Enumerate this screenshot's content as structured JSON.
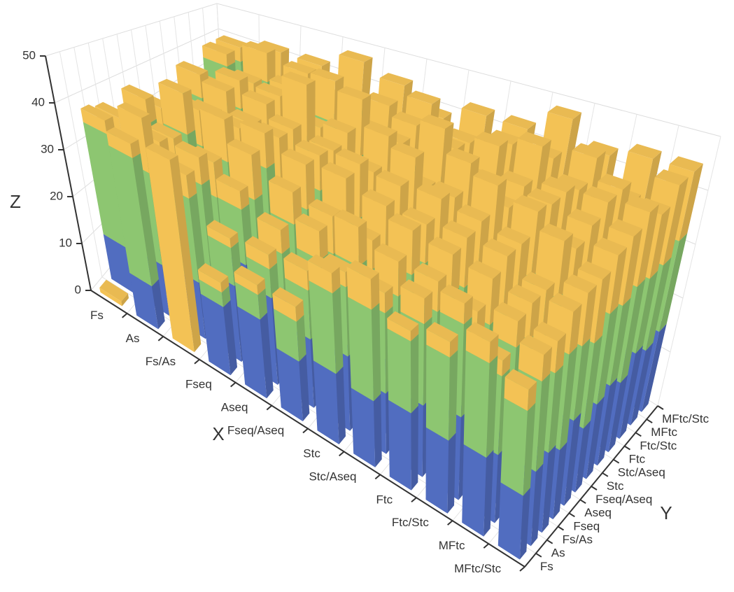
{
  "chart_data": {
    "type": "bar3d",
    "x_name": "X",
    "y_name": "Y",
    "z_name": "Z",
    "categories": [
      "Fs",
      "As",
      "Fs/As",
      "Fseq",
      "Aseq",
      "Fseq/Aseq",
      "Stc",
      "Stc/Aseq",
      "Ftc",
      "Ftc/Stc",
      "MFtc",
      "MFtc/Stc"
    ],
    "zlim": [
      0,
      50
    ],
    "zticks": [
      0,
      10,
      20,
      30,
      40,
      50
    ],
    "grid": true,
    "series": [
      {
        "color": "#5470c6",
        "values": [
          [
            0,
            10,
            14,
            8,
            12,
            10,
            9,
            8,
            12,
            10,
            15,
            12
          ],
          [
            9,
            11,
            10,
            13,
            12,
            14,
            10,
            11,
            12,
            9,
            13,
            11
          ],
          [
            0,
            12,
            9,
            10,
            14,
            11,
            13,
            12,
            10,
            14,
            12,
            13
          ],
          [
            14,
            16,
            18,
            12,
            15,
            13,
            14,
            16,
            12,
            15,
            13,
            14
          ],
          [
            16,
            18,
            15,
            14,
            12,
            16,
            13,
            15,
            14,
            12,
            15,
            16
          ],
          [
            12,
            14,
            16,
            13,
            15,
            12,
            14,
            13,
            15,
            16,
            14,
            12
          ],
          [
            14,
            15,
            13,
            16,
            12,
            14,
            15,
            13,
            16,
            14,
            12,
            15
          ],
          [
            13,
            12,
            15,
            14,
            16,
            13,
            12,
            14,
            15,
            13,
            16,
            14
          ],
          [
            15,
            14,
            12,
            16,
            13,
            15,
            14,
            12,
            13,
            15,
            14,
            16
          ],
          [
            14,
            16,
            13,
            12,
            15,
            14,
            16,
            13,
            12,
            14,
            15,
            13
          ],
          [
            15,
            13,
            14,
            16,
            12,
            15,
            13,
            14,
            16,
            12,
            13,
            15
          ],
          [
            12,
            14,
            15,
            13,
            16,
            12,
            14,
            15,
            13,
            16,
            14,
            15
          ]
        ]
      },
      {
        "color": "#91cc75",
        "values": [
          [
            0,
            25,
            18,
            15,
            20,
            16,
            14,
            12,
            18,
            15,
            20,
            22
          ],
          [
            27,
            20,
            18,
            16,
            22,
            15,
            18,
            16,
            20,
            18,
            22,
            20
          ],
          [
            0,
            18,
            22,
            16,
            18,
            20,
            15,
            17,
            22,
            16,
            18,
            20
          ],
          [
            3,
            8,
            12,
            18,
            20,
            15,
            16,
            18,
            15,
            20,
            17,
            19
          ],
          [
            5,
            6,
            10,
            15,
            18,
            16,
            14,
            17,
            19,
            15,
            18,
            16
          ],
          [
            8,
            10,
            12,
            14,
            16,
            18,
            15,
            17,
            14,
            16,
            18,
            15
          ],
          [
            16,
            14,
            18,
            12,
            15,
            17,
            16,
            14,
            18,
            15,
            17,
            16
          ],
          [
            18,
            16,
            14,
            17,
            15,
            18,
            16,
            17,
            14,
            18,
            15,
            17
          ],
          [
            14,
            16,
            18,
            15,
            17,
            14,
            18,
            16,
            15,
            17,
            16,
            18
          ],
          [
            16,
            18,
            15,
            17,
            14,
            16,
            15,
            18,
            17,
            16,
            18,
            15
          ],
          [
            18,
            15,
            17,
            14,
            16,
            18,
            17,
            15,
            16,
            18,
            15,
            17
          ],
          [
            16,
            17,
            15,
            18,
            14,
            16,
            17,
            15,
            18,
            14,
            16,
            17
          ]
        ]
      },
      {
        "color": "#fac858",
        "values": [
          [
            1,
            3,
            5,
            4,
            6,
            8,
            4,
            5,
            7,
            6,
            4,
            5
          ],
          [
            3,
            12,
            8,
            6,
            10,
            9,
            7,
            12,
            8,
            10,
            9,
            11
          ],
          [
            40,
            5,
            6,
            8,
            10,
            7,
            9,
            11,
            8,
            10,
            12,
            9
          ],
          [
            2,
            2,
            4,
            10,
            8,
            12,
            10,
            15,
            9,
            11,
            8,
            14
          ],
          [
            2,
            3,
            5,
            7,
            10,
            8,
            12,
            9,
            14,
            10,
            8,
            12
          ],
          [
            3,
            4,
            6,
            8,
            10,
            12,
            9,
            14,
            11,
            10,
            13,
            12
          ],
          [
            4,
            3,
            8,
            6,
            12,
            10,
            14,
            9,
            13,
            11,
            10,
            12
          ],
          [
            6,
            4,
            7,
            9,
            8,
            11,
            12,
            14,
            10,
            13,
            11,
            12
          ],
          [
            2,
            5,
            6,
            8,
            10,
            12,
            14,
            11,
            13,
            15,
            12,
            14
          ],
          [
            3,
            4,
            6,
            9,
            11,
            10,
            13,
            12,
            14,
            11,
            12,
            15
          ],
          [
            4,
            3,
            5,
            7,
            9,
            11,
            10,
            13,
            12,
            14,
            11,
            13
          ],
          [
            4,
            5,
            6,
            8,
            10,
            12,
            11,
            13,
            14,
            12,
            15,
            13
          ]
        ]
      }
    ]
  }
}
